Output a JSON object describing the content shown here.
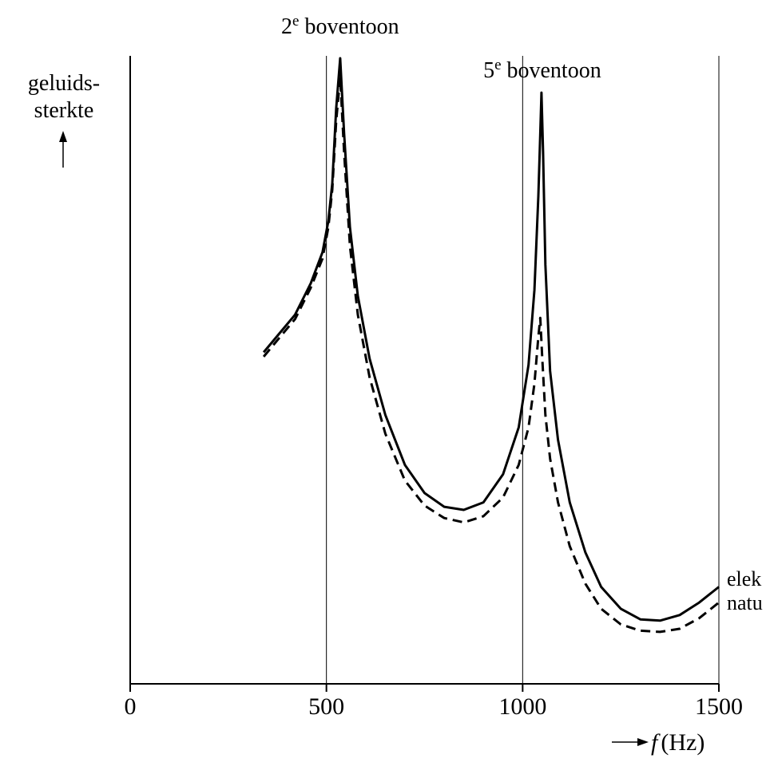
{
  "chart_data": {
    "type": "line",
    "ylabel_lines": [
      "geluids-",
      "sterkte"
    ],
    "xlabel_var": "f",
    "xlabel_unit": "(Hz)",
    "xlim": [
      0,
      1500
    ],
    "ylim": [
      0,
      100
    ],
    "x_ticks": [
      0,
      500,
      1000,
      1500
    ],
    "x_tick_labels": [
      "0",
      "500",
      "1000",
      "1500"
    ],
    "gridlines_x": [
      500,
      1000,
      1500
    ],
    "annotations": [
      {
        "id": "overtone2",
        "num": "2",
        "sup": "e",
        "text": " boventoon",
        "x": 535
      },
      {
        "id": "overtone5",
        "num": "5",
        "sup": "e",
        "text": " boventoon",
        "x": 1050
      }
    ],
    "series": [
      {
        "key": "elek",
        "label": "elek",
        "style": "solid",
        "points": [
          [
            340,
            53
          ],
          [
            380,
            56
          ],
          [
            420,
            59
          ],
          [
            460,
            64
          ],
          [
            490,
            69
          ],
          [
            505,
            74
          ],
          [
            515,
            80
          ],
          [
            525,
            92
          ],
          [
            535,
            100
          ],
          [
            545,
            88
          ],
          [
            560,
            73
          ],
          [
            580,
            62
          ],
          [
            610,
            52
          ],
          [
            650,
            43
          ],
          [
            700,
            35
          ],
          [
            750,
            30.5
          ],
          [
            800,
            28.3
          ],
          [
            850,
            27.8
          ],
          [
            900,
            29
          ],
          [
            950,
            33.5
          ],
          [
            990,
            41
          ],
          [
            1015,
            51
          ],
          [
            1030,
            63
          ],
          [
            1040,
            78
          ],
          [
            1045,
            88
          ],
          [
            1048,
            94.5
          ],
          [
            1052,
            85
          ],
          [
            1058,
            67
          ],
          [
            1070,
            50
          ],
          [
            1090,
            39
          ],
          [
            1120,
            29
          ],
          [
            1160,
            21
          ],
          [
            1200,
            15.5
          ],
          [
            1250,
            12
          ],
          [
            1300,
            10.3
          ],
          [
            1350,
            10.1
          ],
          [
            1400,
            11
          ],
          [
            1450,
            13
          ],
          [
            1500,
            15.5
          ]
        ]
      },
      {
        "key": "natu",
        "label": "natu",
        "style": "dashed",
        "points": [
          [
            340,
            52.3
          ],
          [
            380,
            55.3
          ],
          [
            420,
            58.3
          ],
          [
            460,
            63.3
          ],
          [
            490,
            68
          ],
          [
            505,
            73
          ],
          [
            515,
            79
          ],
          [
            525,
            90
          ],
          [
            535,
            97
          ],
          [
            545,
            85
          ],
          [
            560,
            70
          ],
          [
            580,
            59
          ],
          [
            610,
            49
          ],
          [
            650,
            40
          ],
          [
            700,
            32.5
          ],
          [
            750,
            28.5
          ],
          [
            800,
            26.5
          ],
          [
            850,
            25.8
          ],
          [
            900,
            26.8
          ],
          [
            950,
            29.8
          ],
          [
            990,
            35
          ],
          [
            1015,
            41
          ],
          [
            1030,
            48
          ],
          [
            1040,
            55.5
          ],
          [
            1045,
            58.5
          ],
          [
            1050,
            52
          ],
          [
            1058,
            43
          ],
          [
            1070,
            36
          ],
          [
            1090,
            29
          ],
          [
            1120,
            22
          ],
          [
            1160,
            16
          ],
          [
            1200,
            12
          ],
          [
            1250,
            9.5
          ],
          [
            1300,
            8.5
          ],
          [
            1350,
            8.3
          ],
          [
            1400,
            8.8
          ],
          [
            1450,
            10.5
          ],
          [
            1500,
            13
          ]
        ]
      }
    ]
  }
}
